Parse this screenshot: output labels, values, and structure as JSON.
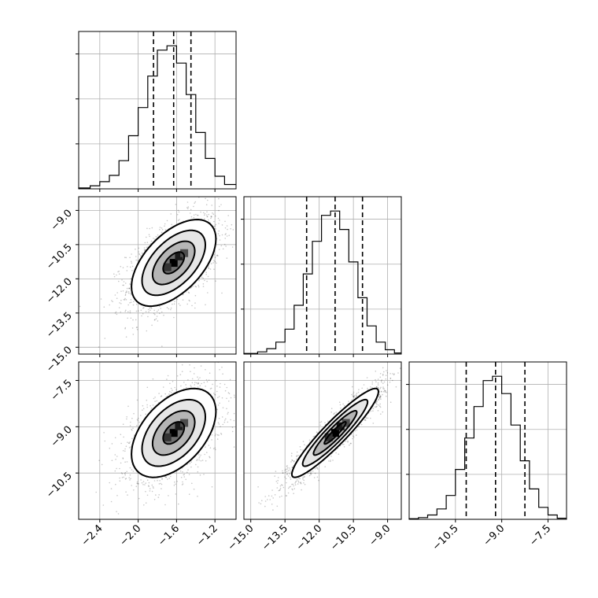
{
  "chart_data": {
    "type": "corner",
    "title": "",
    "grid": true,
    "parameters": [
      {
        "label": "",
        "range": [
          -2.62,
          -0.98
        ],
        "ticks": [
          -2.4,
          -2.0,
          -1.6,
          -1.2
        ],
        "tick_labels": [
          "−2.4",
          "−2.0",
          "−1.6",
          "−1.2"
        ]
      },
      {
        "label": "",
        "range": [
          -15.3,
          -8.4
        ],
        "ticks": [
          -15.0,
          -13.5,
          -12.0,
          -10.5,
          -9.0
        ],
        "tick_labels": [
          "−15.0",
          "−13.5",
          "−12.0",
          "−10.5",
          "−9.0"
        ]
      },
      {
        "label": "",
        "range": [
          -12.0,
          -6.9
        ],
        "ticks": [
          -10.5,
          -9.0,
          -7.5
        ],
        "tick_labels": [
          "−10.5",
          "−9.0",
          "−7.5"
        ]
      }
    ],
    "marginals": [
      {
        "param": 0,
        "bin_edges": [
          -2.62,
          -2.5,
          -2.4,
          -2.3,
          -2.2,
          -2.1,
          -2.0,
          -1.9,
          -1.8,
          -1.7,
          -1.6,
          -1.5,
          -1.4,
          -1.3,
          -1.2,
          -1.1,
          -0.98
        ],
        "counts": [
          4,
          14,
          33,
          62,
          130,
          245,
          375,
          520,
          640,
          660,
          580,
          435,
          260,
          140,
          58,
          20
        ],
        "quantiles": [
          -1.84,
          -1.63,
          -1.45
        ]
      },
      {
        "param": 1,
        "bin_edges": [
          -15.3,
          -14.7,
          -14.3,
          -13.9,
          -13.5,
          -13.1,
          -12.7,
          -12.3,
          -11.9,
          -11.5,
          -11.1,
          -10.7,
          -10.3,
          -9.9,
          -9.5,
          -9.1,
          -8.7,
          -8.4
        ],
        "counts": [
          3,
          10,
          25,
          55,
          115,
          225,
          370,
          520,
          640,
          660,
          575,
          425,
          260,
          130,
          55,
          20,
          5
        ],
        "quantiles": [
          -12.55,
          -11.3,
          -10.1
        ]
      },
      {
        "param": 2,
        "bin_edges": [
          -12.0,
          -11.7,
          -11.4,
          -11.1,
          -10.8,
          -10.5,
          -10.2,
          -9.9,
          -9.6,
          -9.3,
          -9.0,
          -8.7,
          -8.4,
          -8.1,
          -7.8,
          -7.5,
          -7.2,
          -6.9
        ],
        "counts": [
          3,
          8,
          20,
          48,
          110,
          230,
          375,
          520,
          640,
          660,
          580,
          435,
          270,
          140,
          55,
          20,
          5
        ],
        "quantiles": [
          -10.15,
          -9.2,
          -8.25
        ]
      }
    ],
    "joint": [
      {
        "x_param": 0,
        "y_param": 1,
        "mean": [
          -1.63,
          -11.3
        ],
        "sd": [
          0.22,
          0.95
        ],
        "corr": 0.55,
        "contour_levels_sigma": [
          0.5,
          1.0,
          1.5,
          2.0
        ],
        "n_points": 1800
      },
      {
        "x_param": 0,
        "y_param": 2,
        "mean": [
          -1.63,
          -9.2
        ],
        "sd": [
          0.22,
          0.72
        ],
        "corr": 0.48,
        "contour_levels_sigma": [
          0.5,
          1.0,
          1.5,
          2.0
        ],
        "n_points": 1800
      },
      {
        "x_param": 1,
        "y_param": 2,
        "mean": [
          -11.3,
          -9.2
        ],
        "sd": [
          0.95,
          0.72
        ],
        "corr": 0.93,
        "contour_levels_sigma": [
          0.5,
          1.0,
          1.5,
          2.0
        ],
        "n_points": 1800
      }
    ]
  }
}
